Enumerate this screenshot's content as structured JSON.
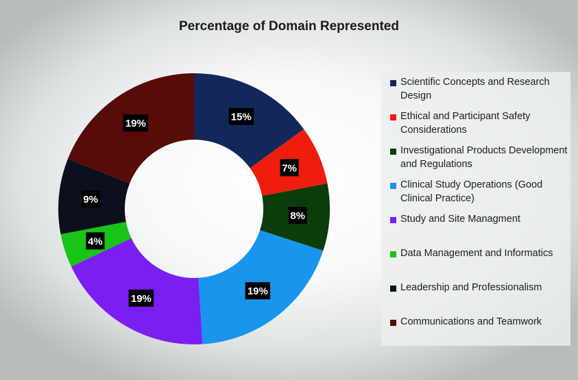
{
  "chart_data": {
    "type": "pie",
    "title": "Percentage of Domain Represented",
    "donut": true,
    "legend_position": "right",
    "categories": [
      "Scientific Concepts and Research Design",
      "Ethical and Participant Safety Considerations",
      "Investigational Products Development and Regulations",
      "Clinical Study Operations (Good Clinical Practice)",
      "Study and Site Managment",
      "Data Management and Informatics",
      "Leadership and Professionalism",
      "Communications and Teamwork"
    ],
    "values": [
      15,
      7,
      8,
      19,
      19,
      4,
      9,
      19
    ],
    "labels": [
      "15%",
      "7%",
      "8%",
      "19%",
      "19%",
      "4%",
      "9%",
      "19%"
    ],
    "colors": [
      "#13285a",
      "#ee1d0e",
      "#0c3d0c",
      "#1a95ee",
      "#7a1ef2",
      "#17c417",
      "#0b0f1e",
      "#580c07"
    ]
  }
}
